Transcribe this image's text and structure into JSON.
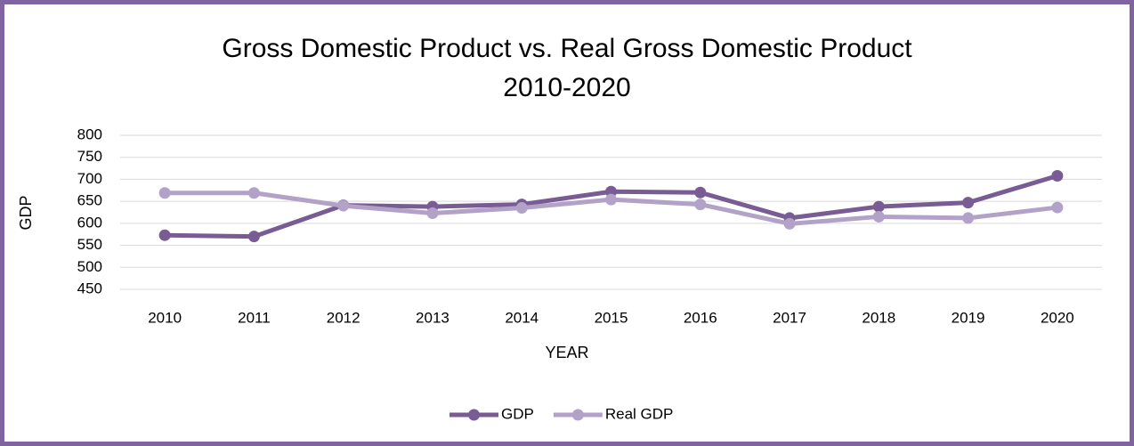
{
  "chart_data": {
    "type": "line",
    "title": "Gross Domestic Product vs. Real Gross Domestic Product",
    "subtitle": "2010-2020",
    "x_label": "YEAR",
    "y_label": "GDP",
    "categories": [
      "2010",
      "2011",
      "2012",
      "2013",
      "2014",
      "2015",
      "2016",
      "2017",
      "2018",
      "2019",
      "2020"
    ],
    "series": [
      {
        "name": "GDP",
        "color": "#7a5c94",
        "values": [
          573,
          570,
          641,
          638,
          643,
          672,
          670,
          612,
          638,
          647,
          708
        ]
      },
      {
        "name": "Real GDP",
        "color": "#b3a2c7",
        "values": [
          669,
          669,
          640,
          623,
          635,
          654,
          643,
          599,
          615,
          612,
          636
        ]
      }
    ],
    "ylim": [
      450,
      800
    ],
    "yticks": [
      450,
      500,
      550,
      600,
      650,
      700,
      750,
      800
    ],
    "grid": true,
    "legend": "bottom"
  }
}
